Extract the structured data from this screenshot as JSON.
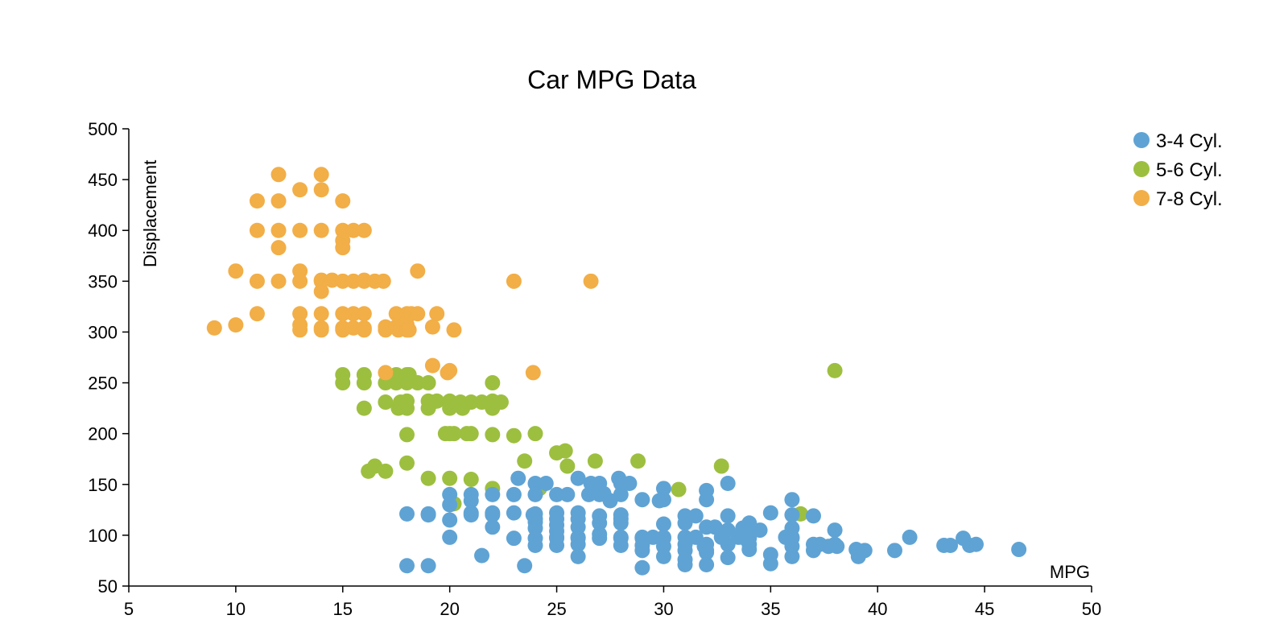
{
  "chart_data": {
    "type": "scatter",
    "title": "Car MPG Data",
    "xlabel": "MPG",
    "ylabel": "Displacement",
    "xlim": [
      5,
      50
    ],
    "ylim": [
      50,
      500
    ],
    "xticks": [
      5,
      10,
      15,
      20,
      25,
      30,
      35,
      40,
      45,
      50
    ],
    "yticks": [
      50,
      100,
      150,
      200,
      250,
      300,
      350,
      400,
      450,
      500
    ],
    "grid": false,
    "legend_position": "top-right",
    "series": [
      {
        "name": "3-4 Cyl.",
        "color": "#5fa3d4",
        "points": [
          [
            18,
            121
          ],
          [
            18,
            70
          ],
          [
            19,
            121
          ],
          [
            19,
            120
          ],
          [
            19,
            70
          ],
          [
            20,
            140
          ],
          [
            20,
            130
          ],
          [
            20,
            115
          ],
          [
            20,
            98
          ],
          [
            21,
            140
          ],
          [
            21,
            134
          ],
          [
            21,
            120
          ],
          [
            21,
            122
          ],
          [
            21.5,
            80
          ],
          [
            22,
            140
          ],
          [
            22,
            122
          ],
          [
            22,
            108
          ],
          [
            22,
            120
          ],
          [
            23,
            140
          ],
          [
            23,
            122
          ],
          [
            23,
            97
          ],
          [
            23.2,
            156
          ],
          [
            23.5,
            70
          ],
          [
            23.9,
            120
          ],
          [
            24,
            151
          ],
          [
            24,
            140
          ],
          [
            24,
            121
          ],
          [
            24,
            116
          ],
          [
            24,
            113
          ],
          [
            24,
            107
          ],
          [
            24,
            97
          ],
          [
            24,
            90
          ],
          [
            24.5,
            151
          ],
          [
            25,
            140
          ],
          [
            25,
            122
          ],
          [
            25,
            116
          ],
          [
            25,
            110
          ],
          [
            25,
            104
          ],
          [
            25,
            98
          ],
          [
            25,
            97
          ],
          [
            25,
            90
          ],
          [
            25.5,
            140
          ],
          [
            26,
            156
          ],
          [
            26,
            122
          ],
          [
            26,
            116
          ],
          [
            26,
            108
          ],
          [
            26,
            98
          ],
          [
            26,
            97
          ],
          [
            26,
            91
          ],
          [
            26,
            79
          ],
          [
            26.5,
            140
          ],
          [
            26.6,
            151
          ],
          [
            27,
            151
          ],
          [
            27,
            140
          ],
          [
            27,
            119
          ],
          [
            27,
            112
          ],
          [
            27,
            101
          ],
          [
            27,
            97
          ],
          [
            27.2,
            141
          ],
          [
            27.5,
            134
          ],
          [
            27.9,
            156
          ],
          [
            28,
            151
          ],
          [
            28,
            140
          ],
          [
            28,
            120
          ],
          [
            28,
            116
          ],
          [
            28,
            112
          ],
          [
            28,
            98
          ],
          [
            28,
            97
          ],
          [
            28,
            90
          ],
          [
            28.4,
            151
          ],
          [
            29,
            135
          ],
          [
            29,
            98
          ],
          [
            29,
            97
          ],
          [
            29,
            90
          ],
          [
            29,
            85
          ],
          [
            29,
            68
          ],
          [
            29.5,
            98
          ],
          [
            29.8,
            134
          ],
          [
            30,
            146
          ],
          [
            30,
            135
          ],
          [
            30,
            111
          ],
          [
            30,
            98
          ],
          [
            30,
            97
          ],
          [
            30,
            89
          ],
          [
            30,
            79
          ],
          [
            31,
            119
          ],
          [
            31,
            112
          ],
          [
            31,
            98
          ],
          [
            31,
            91
          ],
          [
            31,
            85
          ],
          [
            31,
            76
          ],
          [
            31,
            71
          ],
          [
            31.5,
            119
          ],
          [
            31.5,
            98
          ],
          [
            31.9,
            89
          ],
          [
            32,
            144
          ],
          [
            32,
            135
          ],
          [
            32,
            108
          ],
          [
            32,
            91
          ],
          [
            32,
            85
          ],
          [
            32,
            83
          ],
          [
            32,
            71
          ],
          [
            32.4,
            108
          ],
          [
            32.7,
            98
          ],
          [
            33,
            119
          ],
          [
            33,
            105
          ],
          [
            33,
            91
          ],
          [
            33,
            78
          ],
          [
            33.5,
            98
          ],
          [
            33.7,
            107
          ],
          [
            33.8,
            97
          ],
          [
            34,
            112
          ],
          [
            34,
            108
          ],
          [
            34,
            105
          ],
          [
            34,
            97
          ],
          [
            34,
            91
          ],
          [
            34,
            86
          ],
          [
            34.5,
            105
          ],
          [
            35,
            122
          ],
          [
            35,
            81
          ],
          [
            35,
            72
          ],
          [
            35.7,
            98
          ],
          [
            36,
            135
          ],
          [
            36,
            120
          ],
          [
            36,
            107
          ],
          [
            36,
            98
          ],
          [
            36,
            97
          ],
          [
            36,
            89
          ],
          [
            36,
            79
          ],
          [
            37,
            119
          ],
          [
            37,
            91
          ],
          [
            37,
            85
          ],
          [
            37.3,
            91
          ],
          [
            37.7,
            89
          ],
          [
            38,
            105
          ],
          [
            38,
            91
          ],
          [
            38.1,
            89
          ],
          [
            39,
            86
          ],
          [
            39.1,
            79
          ],
          [
            39.4,
            85
          ],
          [
            40.8,
            85
          ],
          [
            41.5,
            98
          ],
          [
            43.1,
            90
          ],
          [
            43.4,
            90
          ],
          [
            44,
            97
          ],
          [
            44.3,
            90
          ],
          [
            44.6,
            91
          ],
          [
            46.6,
            86
          ],
          [
            33,
            151
          ]
        ]
      },
      {
        "name": "5-6 Cyl.",
        "color": "#9dbf3f",
        "points": [
          [
            15,
            250
          ],
          [
            15,
            258
          ],
          [
            16,
            258
          ],
          [
            16,
            250
          ],
          [
            16,
            225
          ],
          [
            16.2,
            163
          ],
          [
            16.5,
            168
          ],
          [
            17,
            231
          ],
          [
            17,
            250
          ],
          [
            17,
            163
          ],
          [
            17.5,
            250
          ],
          [
            17.5,
            258
          ],
          [
            17.6,
            225
          ],
          [
            17.7,
            231
          ],
          [
            18,
            250
          ],
          [
            18,
            258
          ],
          [
            18,
            232
          ],
          [
            18,
            225
          ],
          [
            18,
            199
          ],
          [
            18,
            171
          ],
          [
            18.1,
            258
          ],
          [
            18.5,
            250
          ],
          [
            19,
            250
          ],
          [
            19,
            232
          ],
          [
            19,
            225
          ],
          [
            19,
            156
          ],
          [
            19.2,
            231
          ],
          [
            19.4,
            232
          ],
          [
            19.8,
            200
          ],
          [
            20,
            232
          ],
          [
            20,
            225
          ],
          [
            20,
            200
          ],
          [
            20,
            156
          ],
          [
            20.2,
            200
          ],
          [
            20.2,
            131
          ],
          [
            20.5,
            231
          ],
          [
            20.6,
            225
          ],
          [
            20.8,
            200
          ],
          [
            21,
            231
          ],
          [
            21,
            200
          ],
          [
            21,
            155
          ],
          [
            21.5,
            231
          ],
          [
            22,
            250
          ],
          [
            22,
            232
          ],
          [
            22,
            225
          ],
          [
            22,
            199
          ],
          [
            22,
            146
          ],
          [
            22.4,
            231
          ],
          [
            23,
            198
          ],
          [
            23.5,
            173
          ],
          [
            24,
            200
          ],
          [
            24.2,
            146
          ],
          [
            25,
            181
          ],
          [
            25.4,
            183
          ],
          [
            25.5,
            168
          ],
          [
            26.8,
            173
          ],
          [
            28.8,
            173
          ],
          [
            30.7,
            145
          ],
          [
            32.7,
            168
          ],
          [
            36.4,
            121
          ],
          [
            38,
            262
          ]
        ]
      },
      {
        "name": "7-8 Cyl.",
        "color": "#f2ae47",
        "points": [
          [
            9,
            304
          ],
          [
            10,
            360
          ],
          [
            10,
            307
          ],
          [
            11,
            429
          ],
          [
            11,
            400
          ],
          [
            11,
            350
          ],
          [
            11,
            318
          ],
          [
            12,
            455
          ],
          [
            12,
            429
          ],
          [
            12,
            400
          ],
          [
            12,
            383
          ],
          [
            12,
            350
          ],
          [
            13,
            440
          ],
          [
            13,
            400
          ],
          [
            13,
            360
          ],
          [
            13,
            350
          ],
          [
            13,
            318
          ],
          [
            13,
            307
          ],
          [
            13,
            302
          ],
          [
            14,
            455
          ],
          [
            14,
            440
          ],
          [
            14,
            400
          ],
          [
            14,
            351
          ],
          [
            14,
            350
          ],
          [
            14,
            340
          ],
          [
            14,
            318
          ],
          [
            14,
            304
          ],
          [
            14,
            302
          ],
          [
            14.5,
            351
          ],
          [
            15,
            429
          ],
          [
            15,
            400
          ],
          [
            15,
            390
          ],
          [
            15,
            383
          ],
          [
            15,
            350
          ],
          [
            15,
            318
          ],
          [
            15,
            304
          ],
          [
            15,
            302
          ],
          [
            15.5,
            400
          ],
          [
            15.5,
            350
          ],
          [
            15.5,
            318
          ],
          [
            15.5,
            304
          ],
          [
            16,
            400
          ],
          [
            16,
            351
          ],
          [
            16,
            350
          ],
          [
            16,
            318
          ],
          [
            16,
            304
          ],
          [
            16,
            302
          ],
          [
            16.5,
            350
          ],
          [
            16.9,
            350
          ],
          [
            17,
            305
          ],
          [
            17,
            302
          ],
          [
            17,
            260
          ],
          [
            17.5,
            305
          ],
          [
            17.5,
            318
          ],
          [
            17.6,
            302
          ],
          [
            17.7,
            305
          ],
          [
            18,
            318
          ],
          [
            18,
            307
          ],
          [
            18,
            302
          ],
          [
            18.1,
            302
          ],
          [
            18.2,
            318
          ],
          [
            18.5,
            360
          ],
          [
            18.5,
            318
          ],
          [
            19.2,
            305
          ],
          [
            19.2,
            267
          ],
          [
            19.4,
            318
          ],
          [
            19.9,
            260
          ],
          [
            20,
            262
          ],
          [
            20.2,
            302
          ],
          [
            23,
            350
          ],
          [
            23.9,
            260
          ],
          [
            26.6,
            350
          ]
        ]
      }
    ]
  }
}
